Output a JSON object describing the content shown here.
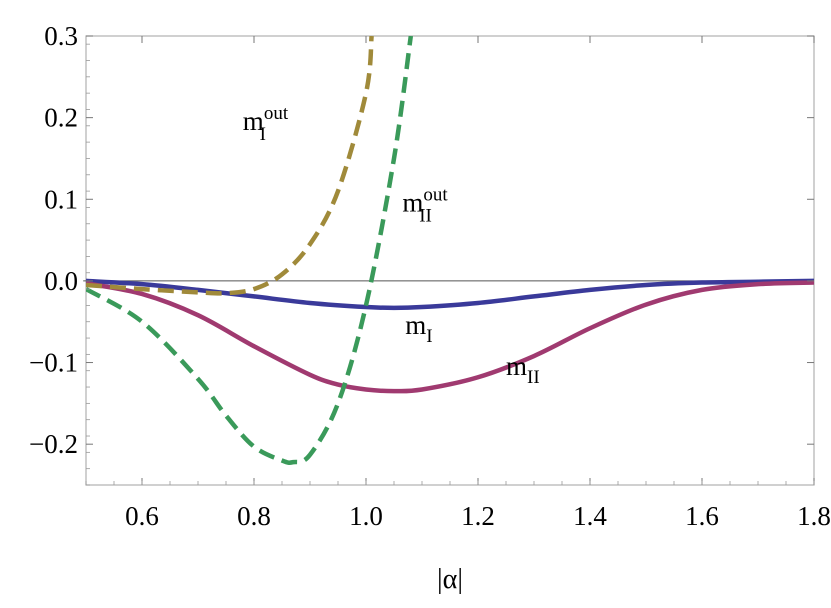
{
  "chart_data": {
    "type": "line",
    "xlabel": "|α|",
    "ylabel": "",
    "xlim": [
      0.5,
      1.8
    ],
    "ylim": [
      -0.25,
      0.3
    ],
    "xticks": [
      0.6,
      0.8,
      1.0,
      1.2,
      1.4,
      1.6,
      1.8
    ],
    "xtick_labels": [
      "0.6",
      "0.8",
      "1.0",
      "1.2",
      "1.4",
      "1.6",
      "1.8"
    ],
    "yticks": [
      -0.2,
      -0.1,
      0.0,
      0.1,
      0.2,
      0.3
    ],
    "ytick_labels": [
      "−0.2",
      "−0.1",
      "0.0",
      "0.1",
      "0.2",
      "0.3"
    ],
    "grid": false,
    "zero_line": true,
    "series": [
      {
        "name": "m_I",
        "label_main": "m",
        "label_sub": "I",
        "label_sup": "",
        "color": "#3a3a9a",
        "dash": "solid",
        "x": [
          0.5,
          0.6,
          0.7,
          0.8,
          0.9,
          1.0,
          1.05,
          1.1,
          1.2,
          1.3,
          1.4,
          1.5,
          1.6,
          1.7,
          1.8
        ],
        "y": [
          0.0,
          -0.004,
          -0.011,
          -0.019,
          -0.027,
          -0.032,
          -0.033,
          -0.032,
          -0.027,
          -0.019,
          -0.011,
          -0.005,
          -0.002,
          -0.001,
          0.0
        ]
      },
      {
        "name": "m_II",
        "label_main": "m",
        "label_sub": "II",
        "label_sup": "",
        "color": "#a03a70",
        "dash": "solid",
        "x": [
          0.5,
          0.6,
          0.7,
          0.8,
          0.9,
          0.95,
          1.0,
          1.05,
          1.1,
          1.2,
          1.3,
          1.4,
          1.5,
          1.6,
          1.7,
          1.8
        ],
        "y": [
          -0.003,
          -0.016,
          -0.042,
          -0.08,
          -0.115,
          -0.127,
          -0.133,
          -0.135,
          -0.133,
          -0.118,
          -0.092,
          -0.058,
          -0.029,
          -0.011,
          -0.004,
          -0.002
        ]
      },
      {
        "name": "m_I^out",
        "label_main": "m",
        "label_sub": "I",
        "label_sup": "out",
        "color": "#a08a3a",
        "dash": "dashed",
        "x": [
          0.5,
          0.6,
          0.7,
          0.75,
          0.8,
          0.85,
          0.9,
          0.95,
          1.0,
          1.01
        ],
        "y": [
          -0.005,
          -0.01,
          -0.014,
          -0.015,
          -0.01,
          0.008,
          0.045,
          0.11,
          0.23,
          0.3
        ]
      },
      {
        "name": "m_II^out",
        "label_main": "m",
        "label_sub": "II",
        "label_sup": "out",
        "color": "#3a9a5a",
        "dash": "dashed",
        "x": [
          0.5,
          0.6,
          0.7,
          0.75,
          0.8,
          0.85,
          0.87,
          0.9,
          0.95,
          1.0,
          1.05,
          1.08
        ],
        "y": [
          -0.01,
          -0.05,
          -0.12,
          -0.165,
          -0.203,
          -0.22,
          -0.222,
          -0.213,
          -0.15,
          -0.03,
          0.15,
          0.3
        ]
      }
    ],
    "annotations": [
      {
        "text": "m",
        "sub": "I",
        "sup": "out",
        "x": 0.78,
        "y": 0.185
      },
      {
        "text": "m",
        "sub": "II",
        "sup": "out",
        "x": 1.065,
        "y": 0.085
      },
      {
        "text": "m",
        "sub": "I",
        "sup": "",
        "x": 1.07,
        "y": -0.065
      },
      {
        "text": "m",
        "sub": "II",
        "sup": "",
        "x": 1.25,
        "y": -0.115
      }
    ]
  }
}
